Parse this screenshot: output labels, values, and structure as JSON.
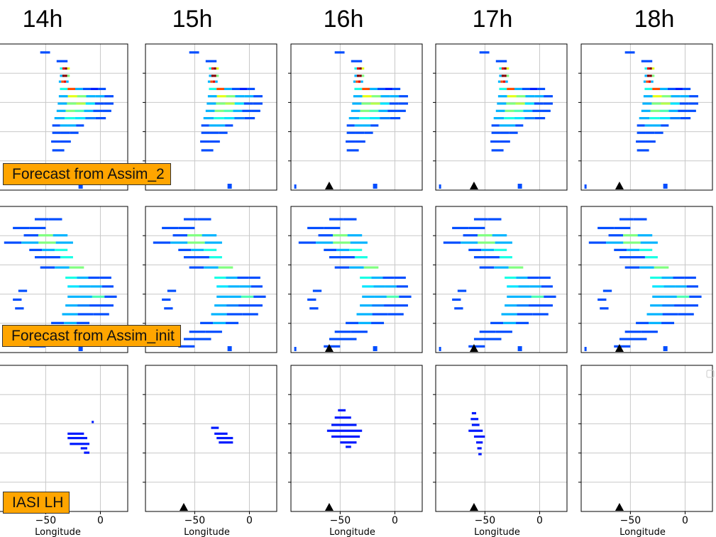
{
  "column_titles": [
    "14h",
    "15h",
    "16h",
    "17h",
    "18h"
  ],
  "row_labels": [
    "Forecast from Assim_2",
    "Forecast from Assim_init",
    "IASI LH"
  ],
  "chart_data": {
    "type": "heatmap",
    "layout": "3 rows x 5 columns of small-multiple longitude–latitude maps",
    "xlabel": "Longitude",
    "x_tick_labels": [
      "−50",
      "0"
    ],
    "x_ticks": [
      -50,
      0
    ],
    "xlim": [
      -95,
      25
    ],
    "ylabels_shown": false,
    "grid": true,
    "colormap": "jet",
    "marker": "black triangle at approx. longitude -60",
    "panels": [
      {
        "row": 0,
        "col": 0,
        "field": "forecast_assim2",
        "triangle": false,
        "x_axis_labels": false
      },
      {
        "row": 0,
        "col": 1,
        "field": "forecast_assim2",
        "triangle": false,
        "x_axis_labels": false
      },
      {
        "row": 0,
        "col": 2,
        "field": "forecast_assim2",
        "triangle": true,
        "x_axis_labels": false
      },
      {
        "row": 0,
        "col": 3,
        "field": "forecast_assim2",
        "triangle": true,
        "x_axis_labels": false
      },
      {
        "row": 0,
        "col": 4,
        "field": "forecast_assim2",
        "triangle": true,
        "x_axis_labels": false
      },
      {
        "row": 1,
        "col": 0,
        "field": "forecast_init",
        "triangle": false,
        "x_axis_labels": false
      },
      {
        "row": 1,
        "col": 1,
        "field": "forecast_init",
        "triangle": false,
        "x_axis_labels": false
      },
      {
        "row": 1,
        "col": 2,
        "field": "forecast_init",
        "triangle": true,
        "x_axis_labels": false
      },
      {
        "row": 1,
        "col": 3,
        "field": "forecast_init",
        "triangle": true,
        "x_axis_labels": false
      },
      {
        "row": 1,
        "col": 4,
        "field": "forecast_init",
        "triangle": true,
        "x_axis_labels": false
      },
      {
        "row": 2,
        "col": 0,
        "field": "iasi_14",
        "triangle": false,
        "x_axis_labels": true
      },
      {
        "row": 2,
        "col": 1,
        "field": "iasi_15",
        "triangle": true,
        "x_axis_labels": true
      },
      {
        "row": 2,
        "col": 2,
        "field": "iasi_16",
        "triangle": true,
        "x_axis_labels": true
      },
      {
        "row": 2,
        "col": 3,
        "field": "iasi_17",
        "triangle": true,
        "x_axis_labels": true
      },
      {
        "row": 2,
        "col": 4,
        "field": "none",
        "triangle": true,
        "x_axis_labels": true
      }
    ],
    "fields": {
      "forecast_assim2": [
        {
          "x0": -55,
          "x1": -46,
          "rel": 0.05,
          "i": [
            0.2
          ]
        },
        {
          "x0": -40,
          "x1": -30,
          "rel": 0.11,
          "i": [
            0.2
          ]
        },
        {
          "x0": -37,
          "x1": -28,
          "rel": 0.16,
          "i": [
            0.4,
            0.9,
            1.0,
            0.6
          ]
        },
        {
          "x0": -37,
          "x1": -28,
          "rel": 0.21,
          "i": [
            0.3,
            1.0,
            1.0,
            0.5
          ]
        },
        {
          "x0": -38,
          "x1": -29,
          "rel": 0.25,
          "i": [
            0.3,
            0.8,
            0.9,
            0.3
          ]
        },
        {
          "x0": -37,
          "x1": 5,
          "rel": 0.3,
          "i": [
            0.4,
            0.8,
            0.3,
            0.2,
            0.15,
            0.2
          ]
        },
        {
          "x0": -38,
          "x1": 12,
          "rel": 0.35,
          "i": [
            0.3,
            0.6,
            0.5,
            0.3,
            0.3,
            0.2
          ]
        },
        {
          "x0": -39,
          "x1": 12,
          "rel": 0.4,
          "i": [
            0.3,
            0.5,
            0.55,
            0.35,
            0.2,
            0.2
          ]
        },
        {
          "x0": -40,
          "x1": 10,
          "rel": 0.45,
          "i": [
            0.3,
            0.5,
            0.45,
            0.3,
            0.2,
            0.2
          ]
        },
        {
          "x0": -42,
          "x1": 5,
          "rel": 0.5,
          "i": [
            0.3,
            0.4,
            0.35,
            0.25,
            0.2
          ]
        },
        {
          "x0": -44,
          "x1": -15,
          "rel": 0.55,
          "i": [
            0.2,
            0.3,
            0.3,
            0.2
          ]
        },
        {
          "x0": -44,
          "x1": -20,
          "rel": 0.6,
          "i": [
            0.2,
            0.2,
            0.2
          ]
        },
        {
          "x0": -45,
          "x1": -27,
          "rel": 0.66,
          "i": [
            0.2,
            0.2
          ]
        },
        {
          "x0": -44,
          "x1": -33,
          "rel": 0.72,
          "i": [
            0.2
          ]
        }
      ],
      "forecast_init": [
        {
          "x0": -60,
          "x1": -35,
          "rel": 0.08,
          "i": [
            0.2,
            0.2
          ]
        },
        {
          "x0": -80,
          "x1": -50,
          "rel": 0.14,
          "i": [
            0.2,
            0.2
          ]
        },
        {
          "x0": -70,
          "x1": -30,
          "rel": 0.19,
          "i": [
            0.2,
            0.5,
            0.3
          ]
        },
        {
          "x0": -88,
          "x1": -25,
          "rel": 0.24,
          "i": [
            0.2,
            0.3,
            0.5,
            0.3
          ]
        },
        {
          "x0": -65,
          "x1": -30,
          "rel": 0.29,
          "i": [
            0.2,
            0.3,
            0.4
          ]
        },
        {
          "x0": -60,
          "x1": -25,
          "rel": 0.34,
          "i": [
            0.2,
            0.2,
            0.4
          ]
        },
        {
          "x0": -55,
          "x1": -15,
          "rel": 0.41,
          "i": [
            0.2,
            0.3,
            0.5
          ]
        },
        {
          "x0": -32,
          "x1": 10,
          "rel": 0.48,
          "i": [
            0.4,
            0.3,
            0.2,
            0.2
          ]
        },
        {
          "x0": -30,
          "x1": 12,
          "rel": 0.54,
          "i": [
            0.35,
            0.3,
            0.3,
            0.2
          ]
        },
        {
          "x0": -75,
          "x1": -67,
          "rel": 0.57,
          "i": [
            0.2
          ]
        },
        {
          "x0": -30,
          "x1": 15,
          "rel": 0.61,
          "i": [
            0.3,
            0.3,
            0.45,
            0.2
          ]
        },
        {
          "x0": -80,
          "x1": -72,
          "rel": 0.63,
          "i": [
            0.2
          ]
        },
        {
          "x0": -32,
          "x1": 12,
          "rel": 0.67,
          "i": [
            0.3,
            0.25,
            0.2,
            0.2
          ]
        },
        {
          "x0": -78,
          "x1": -70,
          "rel": 0.69,
          "i": [
            0.2
          ]
        },
        {
          "x0": -35,
          "x1": 8,
          "rel": 0.73,
          "i": [
            0.3,
            0.2,
            0.2
          ]
        },
        {
          "x0": -45,
          "x1": -10,
          "rel": 0.79,
          "i": [
            0.2,
            0.3,
            0.2
          ]
        },
        {
          "x0": -55,
          "x1": -25,
          "rel": 0.85,
          "i": [
            0.2,
            0.2
          ]
        },
        {
          "x0": -60,
          "x1": -35,
          "rel": 0.9,
          "i": [
            0.2
          ]
        },
        {
          "x0": -65,
          "x1": -50,
          "rel": 0.95,
          "i": [
            0.2
          ]
        }
      ],
      "iasi_14": [
        {
          "x0": -8,
          "x1": -6,
          "rel": 0.38,
          "i": [
            0.15
          ]
        },
        {
          "x0": -30,
          "x1": -15,
          "rel": 0.46,
          "i": [
            0.15
          ]
        },
        {
          "x0": -30,
          "x1": -12,
          "rel": 0.49,
          "i": [
            0.15
          ]
        },
        {
          "x0": -28,
          "x1": -10,
          "rel": 0.53,
          "i": [
            0.15
          ]
        },
        {
          "x0": -18,
          "x1": -12,
          "rel": 0.56,
          "i": [
            0.15
          ]
        },
        {
          "x0": -15,
          "x1": -10,
          "rel": 0.59,
          "i": [
            0.15
          ]
        }
      ],
      "iasi_15": [
        {
          "x0": -35,
          "x1": -28,
          "rel": 0.42,
          "i": [
            0.15
          ]
        },
        {
          "x0": -32,
          "x1": -20,
          "rel": 0.46,
          "i": [
            0.15
          ]
        },
        {
          "x0": -30,
          "x1": -15,
          "rel": 0.49,
          "i": [
            0.15
          ]
        },
        {
          "x0": -28,
          "x1": -15,
          "rel": 0.52,
          "i": [
            0.15
          ]
        }
      ],
      "iasi_16": [
        {
          "x0": -52,
          "x1": -45,
          "rel": 0.3,
          "i": [
            0.15
          ]
        },
        {
          "x0": -55,
          "x1": -40,
          "rel": 0.35,
          "i": [
            0.15
          ]
        },
        {
          "x0": -58,
          "x1": -35,
          "rel": 0.4,
          "i": [
            0.15
          ]
        },
        {
          "x0": -62,
          "x1": -30,
          "rel": 0.44,
          "i": [
            0.15
          ]
        },
        {
          "x0": -58,
          "x1": -32,
          "rel": 0.48,
          "i": [
            0.15
          ]
        },
        {
          "x0": -50,
          "x1": -35,
          "rel": 0.52,
          "i": [
            0.15
          ]
        },
        {
          "x0": -45,
          "x1": -40,
          "rel": 0.55,
          "i": [
            0.15
          ]
        }
      ],
      "iasi_17": [
        {
          "x0": -62,
          "x1": -58,
          "rel": 0.32,
          "i": [
            0.15
          ]
        },
        {
          "x0": -63,
          "x1": -56,
          "rel": 0.36,
          "i": [
            0.15
          ]
        },
        {
          "x0": -62,
          "x1": -55,
          "rel": 0.4,
          "i": [
            0.15
          ]
        },
        {
          "x0": -65,
          "x1": -52,
          "rel": 0.44,
          "i": [
            0.15
          ]
        },
        {
          "x0": -60,
          "x1": -50,
          "rel": 0.48,
          "i": [
            0.15
          ]
        },
        {
          "x0": -58,
          "x1": -52,
          "rel": 0.52,
          "i": [
            0.15
          ]
        },
        {
          "x0": -57,
          "x1": -53,
          "rel": 0.56,
          "i": [
            0.15
          ]
        },
        {
          "x0": -56,
          "x1": -53,
          "rel": 0.6,
          "i": [
            0.15
          ]
        }
      ],
      "none": []
    }
  }
}
